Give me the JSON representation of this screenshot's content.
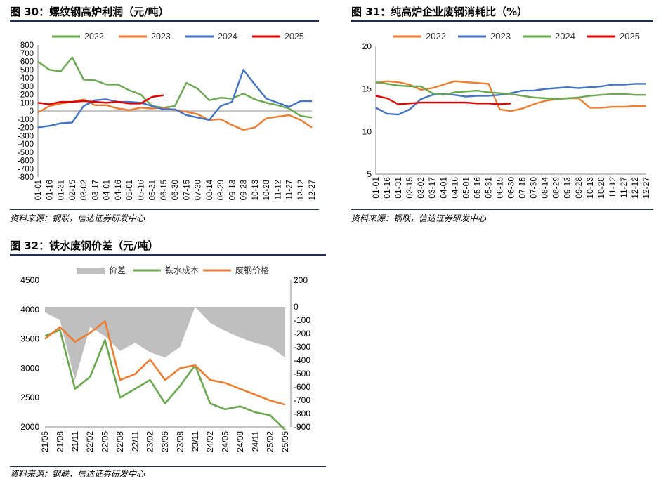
{
  "source_text": "资料来源：钢联，信达证券研发中心",
  "chart_data": [
    {
      "id": "fig30",
      "type": "line",
      "title": "图 30：螺纹钢高炉利润（元/吨）",
      "xlabel": "",
      "ylabel": "",
      "ylim": [
        -800,
        800
      ],
      "yticks": [
        800,
        700,
        600,
        500,
        400,
        300,
        200,
        100,
        0,
        -100,
        -200,
        -300,
        -400,
        -500,
        -600,
        -700,
        -800
      ],
      "categories": [
        "01-01",
        "01-16",
        "01-31",
        "02-15",
        "03-02",
        "03-17",
        "04-01",
        "04-16",
        "05-01",
        "05-16",
        "05-31",
        "06-15",
        "06-30",
        "07-15",
        "07-30",
        "08-14",
        "08-29",
        "09-13",
        "09-28",
        "10-13",
        "10-28",
        "11-12",
        "11-27",
        "12-12",
        "12-27"
      ],
      "legend_position": "top",
      "series": [
        {
          "name": "2022",
          "color": "#6aa84f",
          "values": [
            600,
            500,
            480,
            650,
            380,
            370,
            320,
            320,
            250,
            200,
            60,
            40,
            60,
            340,
            270,
            130,
            160,
            150,
            210,
            140,
            100,
            70,
            30,
            -60,
            -80
          ]
        },
        {
          "name": "2023",
          "color": "#ed7d31",
          "values": [
            -20,
            60,
            90,
            110,
            140,
            70,
            70,
            30,
            10,
            40,
            30,
            40,
            10,
            -10,
            -40,
            -110,
            -100,
            -170,
            -230,
            -200,
            -90,
            -70,
            -50,
            -110,
            -200
          ]
        },
        {
          "name": "2024",
          "color": "#4472c4",
          "values": [
            -200,
            -180,
            -150,
            -140,
            60,
            130,
            140,
            110,
            110,
            100,
            60,
            20,
            20,
            -50,
            -80,
            -110,
            60,
            110,
            500,
            320,
            150,
            100,
            50,
            120,
            120
          ]
        },
        {
          "name": "2025",
          "color": "#e00000",
          "values": [
            100,
            80,
            110,
            110,
            120,
            110,
            100,
            110,
            90,
            90,
            170,
            190,
            null,
            null,
            null,
            null,
            null,
            null,
            null,
            null,
            null,
            null,
            null,
            null,
            null
          ]
        }
      ]
    },
    {
      "id": "fig31",
      "type": "line",
      "title": "图 31：纯高炉企业废钢消耗比（%）",
      "xlabel": "",
      "ylabel": "",
      "ylim": [
        5,
        20
      ],
      "yticks": [
        20,
        15,
        10,
        5
      ],
      "categories": [
        "01-01",
        "01-16",
        "01-31",
        "02-15",
        "03-02",
        "03-17",
        "04-01",
        "04-16",
        "05-01",
        "05-16",
        "05-31",
        "06-15",
        "06-30",
        "07-15",
        "07-30",
        "08-14",
        "08-29",
        "09-13",
        "09-28",
        "10-13",
        "10-28",
        "11-12",
        "11-27",
        "12-12",
        "12-27"
      ],
      "legend_position": "top",
      "series": [
        {
          "name": "2022",
          "color": "#ed7d31",
          "values": [
            15.7,
            15.9,
            15.8,
            15.5,
            14.9,
            15.1,
            15.5,
            15.9,
            15.8,
            15.7,
            15.6,
            12.6,
            12.4,
            12.7,
            13.2,
            13.6,
            13.8,
            13.9,
            13.9,
            12.8,
            12.8,
            12.9,
            12.9,
            13.0,
            13.0
          ]
        },
        {
          "name": "2023",
          "color": "#4472c4",
          "values": [
            12.8,
            12.1,
            12.0,
            12.6,
            13.8,
            14.3,
            14.4,
            14.3,
            14.1,
            14.2,
            14.2,
            14.3,
            14.5,
            14.8,
            14.8,
            15.0,
            15.1,
            15.2,
            15.1,
            15.2,
            15.3,
            15.5,
            15.5,
            15.6,
            15.6
          ]
        },
        {
          "name": "2024",
          "color": "#6aa84f",
          "values": [
            15.8,
            15.6,
            15.4,
            15.3,
            15.3,
            14.5,
            14.3,
            14.6,
            14.7,
            14.8,
            14.6,
            14.5,
            14.4,
            14.2,
            14.0,
            13.9,
            13.8,
            13.9,
            14.0,
            14.2,
            14.3,
            14.4,
            14.4,
            14.3,
            14.3
          ]
        },
        {
          "name": "2025",
          "color": "#e00000",
          "values": [
            14.2,
            13.9,
            13.2,
            13.3,
            13.4,
            13.4,
            13.4,
            13.4,
            13.4,
            13.3,
            13.3,
            13.2,
            13.3,
            null,
            null,
            null,
            null,
            null,
            null,
            null,
            null,
            null,
            null,
            null,
            null
          ]
        }
      ]
    },
    {
      "id": "fig32",
      "type": "area",
      "title": "图 32：铁水废钢价差（元/吨）",
      "xlabel": "",
      "ylabel": "",
      "ylim": [
        2000,
        4500
      ],
      "yticks": [
        4500,
        4000,
        3500,
        3000,
        2500,
        2000
      ],
      "y2lim": [
        -900,
        200
      ],
      "y2ticks": [
        200,
        0,
        -100,
        -200,
        -300,
        -400,
        -500,
        -600,
        -700,
        -800,
        -900
      ],
      "categories": [
        "21/05",
        "21/08",
        "21/11",
        "22/02",
        "22/05",
        "22/08",
        "22/11",
        "23/02",
        "23/05",
        "23/08",
        "23/11",
        "24/02",
        "24/05",
        "24/08",
        "24/11",
        "25/02",
        "25/05"
      ],
      "legend_position": "top",
      "series": [
        {
          "name": "价差",
          "color": "#bfbfbf",
          "axis": "right",
          "values": [
            -40,
            -100,
            -550,
            -150,
            -220,
            -330,
            -270,
            -340,
            -380,
            -300,
            0,
            -120,
            -180,
            -230,
            -270,
            -300,
            -380
          ]
        },
        {
          "name": "铁水成本",
          "color": "#6aa84f",
          "axis": "left",
          "values": [
            3550,
            3650,
            2650,
            2850,
            3480,
            2500,
            2650,
            2800,
            2400,
            2700,
            3050,
            2400,
            2300,
            2350,
            2250,
            2200,
            1950
          ]
        },
        {
          "name": "废钢价格",
          "color": "#ed7d31",
          "axis": "left",
          "values": [
            3500,
            3700,
            3450,
            3600,
            3800,
            2800,
            2900,
            3150,
            2800,
            3000,
            3050,
            2800,
            2750,
            2650,
            2550,
            2450,
            2380
          ]
        }
      ]
    }
  ]
}
